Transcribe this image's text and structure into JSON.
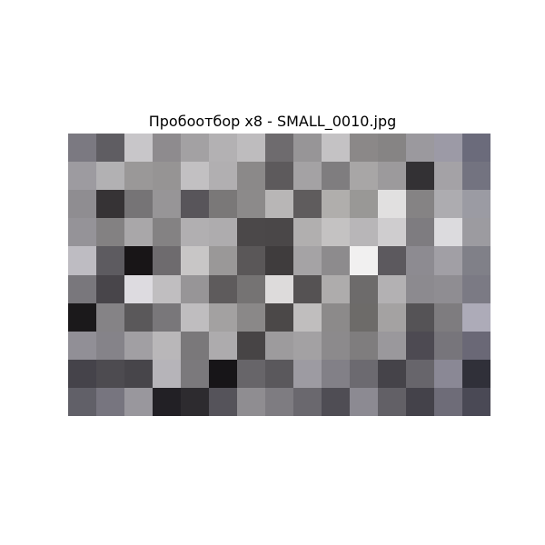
{
  "figure": {
    "title": "Пробоотбор x8 - SMALL_0010.jpg"
  },
  "image": {
    "columns": 15,
    "rows": 10,
    "pixels": [
      [
        "#7b7981",
        "#5f5d62",
        "#c8c6c9",
        "#8e8b8e",
        "#a3a1a3",
        "#b3b1b3",
        "#bebcbe",
        "#6e6b6e",
        "#979597",
        "#c4c2c4",
        "#8b8888",
        "#868484",
        "#9b999e",
        "#9c9aa6",
        "#6b6b7b"
      ],
      [
        "#9d9ba0",
        "#b2b1b3",
        "#9a9898",
        "#969494",
        "#c2c0c2",
        "#b1afb1",
        "#8b8989",
        "#5d5a5c",
        "#a4a2a4",
        "#7f7d7f",
        "#a8a6a6",
        "#9c9a9c",
        "#333134",
        "#a4a2a6",
        "#737380"
      ],
      [
        "#8f8d91",
        "#363335",
        "#767476",
        "#979597",
        "#58555a",
        "#7a7878",
        "#8c8a8a",
        "#b8b6b6",
        "#5f5c5d",
        "#b0aeac",
        "#999896",
        "#e1e0e0",
        "#858384",
        "#adacb0",
        "#9b9ba3"
      ],
      [
        "#959398",
        "#838182",
        "#a9a7a9",
        "#848283",
        "#b1afb1",
        "#aeacae",
        "#4b4849",
        "#4a4748",
        "#b1afaf",
        "#c4c2c2",
        "#b8b6b8",
        "#cfcdcf",
        "#7e7c80",
        "#dcdbde",
        "#9c9ba0"
      ],
      [
        "#bebcc2",
        "#5d5b60",
        "#181517",
        "#6e6b6e",
        "#c8c6c6",
        "#9a9898",
        "#5a5758",
        "#3f3c3d",
        "#a5a3a5",
        "#8d8b8d",
        "#f1f0f0",
        "#5c595e",
        "#8d8b91",
        "#a19fa5",
        "#808088"
      ],
      [
        "#79777c",
        "#48454a",
        "#dddbe0",
        "#c0bec0",
        "#979597",
        "#5e5b5c",
        "#757373",
        "#dddbdb",
        "#555253",
        "#aeacac",
        "#6d6b6b",
        "#b3b1b3",
        "#8c8a8f",
        "#8f8d92",
        "#7b7a84"
      ],
      [
        "#1b191b",
        "#858386",
        "#5a585a",
        "#79777a",
        "#bfbdbf",
        "#a3a1a1",
        "#8a8888",
        "#4b4848",
        "#c0bebe",
        "#8c8a8a",
        "#6d6b69",
        "#a4a2a2",
        "#555356",
        "#7e7c7f",
        "#adabb8"
      ],
      [
        "#918f96",
        "#858389",
        "#a19fa3",
        "#b9b7b9",
        "#7a787a",
        "#adabad",
        "#474445",
        "#9d9b9d",
        "#a3a1a3",
        "#8c8a8c",
        "#7f7d7e",
        "#9a989c",
        "#4d4a52",
        "#77757b",
        "#6a6876"
      ],
      [
        "#45434a",
        "#4d4b50",
        "#47454a",
        "#b6b4b9",
        "#7b797c",
        "#171518",
        "#676569",
        "#5a585c",
        "#9d9ba2",
        "#828087",
        "#6c6a70",
        "#454349",
        "#67656b",
        "#8a8895",
        "#303039"
      ],
      [
        "#616068",
        "#77757f",
        "#99979d",
        "#222025",
        "#2d2b2f",
        "#55535a",
        "#8f8d91",
        "#7e7c81",
        "#6a686e",
        "#4f4d54",
        "#8c8a92",
        "#626066",
        "#44424a",
        "#6e6c78",
        "#4a4955"
      ]
    ]
  }
}
